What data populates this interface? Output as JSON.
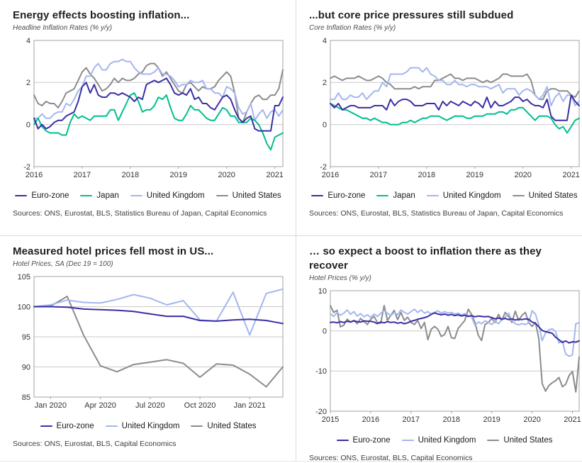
{
  "page": {
    "background": "#ffffff",
    "divider_color": "#d9d9d9"
  },
  "colors": {
    "euro_zone": "#3a2fa6",
    "japan": "#00bf8e",
    "united_kingdom": "#a4b6f0",
    "united_states": "#8c8c8c",
    "gridline": "#c9c9c9",
    "plot_border": "#a3a3a3",
    "tick_text": "#333333"
  },
  "chart_data": [
    {
      "type": "line",
      "title": "Energy effects boosting inflation...",
      "subtitle": "Headline Inflation Rates (% y/y)",
      "sources": "Sources: ONS, Eurostat, BLS, Statistics Bureau of Japan, Capital Economics",
      "ylim": [
        -2,
        4
      ],
      "yticks": [
        4,
        2,
        0,
        -2
      ],
      "ygrid": [
        2,
        0
      ],
      "xticks": [
        {
          "i": 0,
          "label": "2016"
        },
        {
          "i": 12,
          "label": "2017"
        },
        {
          "i": 24,
          "label": "2018"
        },
        {
          "i": 36,
          "label": "2019"
        },
        {
          "i": 48,
          "label": "2020"
        },
        {
          "i": 60,
          "label": "2021"
        }
      ],
      "legend_position": "bottom",
      "grid": true,
      "series": [
        {
          "name": "Euro-zone",
          "color": "#3a2fa6",
          "values": [
            0.3,
            -0.2,
            0.0,
            -0.2,
            -0.1,
            0.1,
            0.2,
            0.2,
            0.4,
            0.5,
            0.6,
            1.1,
            1.8,
            2.0,
            1.5,
            1.9,
            1.4,
            1.3,
            1.3,
            1.5,
            1.5,
            1.4,
            1.5,
            1.4,
            1.3,
            1.1,
            1.3,
            1.2,
            1.9,
            2.0,
            2.1,
            2.0,
            2.1,
            2.2,
            1.9,
            1.5,
            1.4,
            1.5,
            1.4,
            1.7,
            1.2,
            1.3,
            1.0,
            1.0,
            0.8,
            0.7,
            1.0,
            1.3,
            1.4,
            1.2,
            0.7,
            0.3,
            0.1,
            0.3,
            0.4,
            -0.2,
            -0.3,
            -0.3,
            -0.3,
            -0.3,
            0.9,
            0.9,
            1.3
          ]
        },
        {
          "name": "Japan",
          "color": "#00bf8e",
          "values": [
            0.0,
            0.3,
            -0.1,
            -0.3,
            -0.4,
            -0.4,
            -0.4,
            -0.5,
            -0.5,
            0.1,
            0.5,
            0.3,
            0.4,
            0.3,
            0.2,
            0.4,
            0.4,
            0.4,
            0.4,
            0.7,
            0.7,
            0.2,
            0.6,
            1.0,
            1.4,
            1.5,
            1.1,
            0.6,
            0.7,
            0.7,
            0.9,
            1.3,
            1.2,
            1.4,
            0.8,
            0.3,
            0.2,
            0.2,
            0.5,
            0.9,
            0.7,
            0.7,
            0.5,
            0.3,
            0.2,
            0.2,
            0.5,
            0.8,
            0.7,
            0.4,
            0.4,
            0.1,
            0.1,
            0.1,
            0.3,
            0.2,
            0.0,
            -0.4,
            -0.9,
            -1.2,
            -0.6,
            -0.5,
            -0.4
          ]
        },
        {
          "name": "United Kingdom",
          "color": "#a4b6f0",
          "values": [
            0.3,
            0.3,
            0.5,
            0.3,
            0.3,
            0.5,
            0.6,
            0.6,
            1.0,
            0.9,
            1.2,
            1.6,
            1.8,
            2.3,
            2.3,
            2.7,
            2.9,
            2.6,
            2.6,
            2.9,
            3.0,
            3.0,
            3.1,
            3.0,
            3.0,
            2.7,
            2.5,
            2.4,
            2.4,
            2.4,
            2.5,
            2.7,
            2.4,
            2.4,
            2.3,
            2.1,
            1.8,
            1.9,
            1.9,
            2.1,
            2.0,
            2.0,
            2.1,
            1.7,
            1.7,
            1.5,
            1.5,
            1.3,
            1.8,
            1.7,
            1.5,
            0.8,
            0.5,
            0.6,
            1.0,
            0.2,
            0.5,
            0.7,
            0.3,
            0.6,
            0.7,
            0.4,
            0.7
          ]
        },
        {
          "name": "United States",
          "color": "#8c8c8c",
          "values": [
            1.4,
            1.0,
            0.9,
            1.1,
            1.0,
            1.0,
            0.8,
            1.1,
            1.5,
            1.6,
            1.7,
            2.1,
            2.5,
            2.7,
            2.4,
            2.2,
            1.9,
            1.6,
            1.7,
            1.9,
            2.2,
            2.0,
            2.2,
            2.1,
            2.1,
            2.2,
            2.4,
            2.5,
            2.8,
            2.9,
            2.9,
            2.7,
            2.3,
            2.5,
            2.2,
            1.9,
            1.6,
            1.5,
            1.9,
            2.0,
            1.8,
            1.6,
            1.8,
            1.7,
            1.7,
            1.8,
            2.1,
            2.3,
            2.5,
            2.3,
            1.5,
            0.3,
            0.1,
            0.6,
            1.0,
            1.3,
            1.4,
            1.2,
            1.2,
            1.4,
            1.4,
            1.7,
            2.6
          ]
        }
      ]
    },
    {
      "type": "line",
      "title": "...but core price pressures still subdued",
      "subtitle": "Core Inflation Rates (% y/y)",
      "sources": "Sources: ONS, Eurostat, BLS, Statistics Bureau of Japan, Capital Economics",
      "ylim": [
        -2,
        4
      ],
      "yticks": [
        4,
        2,
        0,
        -2
      ],
      "ygrid": [
        2,
        0
      ],
      "xticks": [
        {
          "i": 0,
          "label": "2016"
        },
        {
          "i": 12,
          "label": "2017"
        },
        {
          "i": 24,
          "label": "2018"
        },
        {
          "i": 36,
          "label": "2019"
        },
        {
          "i": 48,
          "label": "2020"
        },
        {
          "i": 60,
          "label": "2021"
        }
      ],
      "legend_position": "bottom",
      "grid": true,
      "series": [
        {
          "name": "Euro-zone",
          "color": "#3a2fa6",
          "values": [
            1.0,
            0.8,
            1.0,
            0.7,
            0.8,
            0.9,
            0.9,
            0.8,
            0.8,
            0.8,
            0.8,
            0.9,
            0.9,
            0.9,
            0.7,
            1.2,
            0.9,
            1.1,
            1.2,
            1.2,
            1.1,
            0.9,
            0.9,
            0.9,
            1.0,
            1.0,
            1.0,
            0.7,
            1.1,
            0.9,
            1.1,
            1.0,
            0.9,
            1.1,
            1.0,
            0.9,
            1.1,
            1.0,
            0.8,
            1.3,
            0.8,
            1.1,
            0.9,
            0.9,
            1.0,
            1.1,
            1.3,
            1.3,
            1.1,
            1.2,
            1.0,
            0.9,
            0.9,
            0.8,
            1.2,
            0.4,
            0.2,
            0.2,
            0.2,
            0.2,
            1.4,
            1.1,
            0.9
          ]
        },
        {
          "name": "Japan",
          "color": "#00bf8e",
          "values": [
            1.0,
            0.9,
            0.8,
            0.7,
            0.7,
            0.6,
            0.5,
            0.4,
            0.3,
            0.3,
            0.2,
            0.3,
            0.2,
            0.1,
            0.1,
            0.0,
            0.0,
            0.0,
            0.1,
            0.1,
            0.2,
            0.1,
            0.2,
            0.3,
            0.3,
            0.4,
            0.4,
            0.4,
            0.3,
            0.2,
            0.3,
            0.4,
            0.4,
            0.4,
            0.3,
            0.3,
            0.4,
            0.4,
            0.4,
            0.5,
            0.5,
            0.5,
            0.6,
            0.6,
            0.5,
            0.7,
            0.7,
            0.8,
            0.8,
            0.6,
            0.4,
            0.2,
            0.4,
            0.4,
            0.4,
            0.3,
            0.0,
            -0.2,
            -0.1,
            -0.4,
            -0.1,
            0.2,
            0.3
          ]
        },
        {
          "name": "United Kingdom",
          "color": "#a4b6f0",
          "values": [
            1.2,
            1.2,
            1.5,
            1.2,
            1.2,
            1.4,
            1.3,
            1.3,
            1.5,
            1.2,
            1.4,
            1.6,
            1.6,
            2.0,
            1.8,
            2.4,
            2.4,
            2.4,
            2.4,
            2.5,
            2.7,
            2.7,
            2.7,
            2.5,
            2.7,
            2.4,
            2.3,
            2.1,
            2.1,
            1.9,
            1.9,
            2.1,
            1.9,
            1.9,
            1.8,
            1.9,
            1.9,
            1.8,
            1.8,
            1.8,
            1.7,
            1.8,
            1.9,
            1.5,
            1.7,
            1.7,
            1.7,
            1.4,
            1.6,
            1.7,
            1.6,
            1.4,
            1.2,
            1.4,
            1.8,
            0.9,
            1.3,
            1.5,
            1.1,
            1.4,
            1.4,
            0.9,
            1.1
          ]
        },
        {
          "name": "United States",
          "color": "#8c8c8c",
          "values": [
            2.2,
            2.3,
            2.2,
            2.1,
            2.2,
            2.2,
            2.2,
            2.3,
            2.2,
            2.1,
            2.1,
            2.2,
            2.3,
            2.2,
            2.0,
            1.9,
            1.7,
            1.7,
            1.7,
            1.7,
            1.7,
            1.8,
            1.7,
            1.8,
            1.8,
            1.8,
            2.1,
            2.1,
            2.2,
            2.3,
            2.4,
            2.2,
            2.2,
            2.1,
            2.2,
            2.2,
            2.2,
            2.1,
            2.0,
            2.1,
            2.0,
            2.1,
            2.2,
            2.4,
            2.4,
            2.3,
            2.3,
            2.3,
            2.3,
            2.4,
            2.1,
            1.4,
            1.2,
            1.2,
            1.6,
            1.7,
            1.7,
            1.6,
            1.6,
            1.6,
            1.4,
            1.3,
            1.6
          ]
        }
      ]
    },
    {
      "type": "line",
      "title": "Measured hotel prices fell most in US...",
      "subtitle": "Hotel Prices, SA (Dec 19 = 100)",
      "sources": "Sources: ONS, Eurostat, BLS, Capital Economics",
      "ylim": [
        85,
        105
      ],
      "yticks": [
        105,
        100,
        95,
        90,
        85
      ],
      "ygrid": [
        100,
        95,
        90
      ],
      "xticks": [
        {
          "i": 1,
          "label": "Jan 2020"
        },
        {
          "i": 4,
          "label": "Apr 2020"
        },
        {
          "i": 7,
          "label": "Jul 2020"
        },
        {
          "i": 10,
          "label": "Oct 2020"
        },
        {
          "i": 13,
          "label": "Jan 2021"
        }
      ],
      "legend_position": "bottom",
      "grid": true,
      "series": [
        {
          "name": "Euro-zone",
          "color": "#3a2fa6",
          "values": [
            100.0,
            100.0,
            99.9,
            99.6,
            99.5,
            99.4,
            99.2,
            98.8,
            98.4,
            98.4,
            97.7,
            97.6,
            97.8,
            97.9,
            97.7,
            97.2
          ]
        },
        {
          "name": "United Kingdom",
          "color": "#a4b6f0",
          "values": [
            100.0,
            100.3,
            101.1,
            100.7,
            100.6,
            101.2,
            102.0,
            101.4,
            100.3,
            101.0,
            97.8,
            97.6,
            102.4,
            95.3,
            102.2,
            102.9
          ]
        },
        {
          "name": "United States",
          "color": "#8c8c8c",
          "values": [
            100.0,
            100.1,
            101.7,
            95.2,
            90.2,
            89.2,
            90.4,
            90.8,
            91.2,
            90.6,
            88.3,
            90.5,
            90.3,
            88.8,
            86.7,
            90.0
          ]
        }
      ]
    },
    {
      "type": "line",
      "title": "… so expect a boost to inflation there as they recover",
      "subtitle": "Hotel Prices (% y/y)",
      "sources": "Sources: ONS, Eurostat, BLS, Capital Economics",
      "ylim": [
        -20,
        10
      ],
      "yticks": [
        10,
        0,
        -10,
        -20
      ],
      "ygrid": [
        0,
        -10
      ],
      "xticks": [
        {
          "i": 0,
          "label": "2015"
        },
        {
          "i": 12,
          "label": "2016"
        },
        {
          "i": 24,
          "label": "2017"
        },
        {
          "i": 36,
          "label": "2018"
        },
        {
          "i": 48,
          "label": "2019"
        },
        {
          "i": 60,
          "label": "2020"
        },
        {
          "i": 72,
          "label": "2021"
        }
      ],
      "legend_position": "bottom",
      "grid": true,
      "series": [
        {
          "name": "Euro-zone",
          "color": "#3a2fa6",
          "values": [
            2.1,
            2.2,
            2.0,
            2.3,
            2.1,
            2.4,
            2.2,
            2.5,
            2.3,
            2.2,
            2.5,
            2.4,
            2.4,
            2.2,
            1.8,
            2.2,
            2.0,
            2.3,
            2.1,
            2.2,
            1.9,
            2.1,
            1.8,
            2.0,
            2.4,
            2.6,
            2.9,
            3.1,
            3.3,
            3.6,
            4.1,
            4.5,
            4.2,
            4.0,
            4.2,
            3.9,
            4.1,
            3.8,
            4.0,
            3.7,
            3.9,
            3.6,
            3.8,
            3.5,
            3.7,
            3.6,
            3.5,
            3.6,
            3.3,
            3.0,
            3.2,
            2.9,
            3.1,
            2.8,
            3.0,
            2.7,
            2.9,
            2.8,
            3.0,
            2.9,
            2.2,
            1.9,
            1.0,
            0.1,
            -0.2,
            -0.4,
            -0.6,
            -1.6,
            -2.2,
            -2.9,
            -2.5,
            -3.0,
            -2.7,
            -2.8,
            -2.5
          ]
        },
        {
          "name": "United Kingdom",
          "color": "#a4b6f0",
          "values": [
            4.3,
            3.6,
            4.6,
            3.9,
            4.4,
            5.2,
            4.1,
            4.8,
            3.7,
            4.3,
            3.5,
            4.0,
            3.4,
            4.2,
            3.6,
            4.4,
            5.0,
            4.4,
            3.8,
            4.6,
            4.0,
            5.2,
            4.6,
            4.2,
            4.8,
            5.4,
            4.6,
            5.2,
            4.4,
            4.8,
            4.2,
            4.6,
            5.0,
            4.4,
            4.8,
            4.4,
            4.6,
            4.2,
            4.4,
            4.0,
            4.3,
            3.9,
            3.5,
            1.4,
            2.2,
            1.8,
            2.5,
            2.1,
            1.6,
            2.4,
            1.8,
            2.8,
            3.4,
            4.4,
            2.6,
            1.8,
            1.5,
            1.8,
            1.6,
            2.0,
            5.0,
            4.2,
            1.5,
            -2.4,
            -0.5,
            0.3,
            0.5,
            -0.2,
            -3.0,
            -2.5,
            -5.8,
            -6.3,
            -6.0,
            1.8,
            2.0
          ]
        },
        {
          "name": "United States",
          "color": "#8c8c8c",
          "values": [
            6.3,
            4.6,
            5.1,
            1.0,
            1.4,
            2.9,
            2.2,
            2.6,
            1.8,
            3.1,
            2.3,
            1.6,
            2.9,
            3.6,
            2.1,
            1.9,
            6.3,
            2.6,
            3.9,
            5.1,
            2.8,
            4.6,
            2.6,
            3.4,
            2.1,
            1.6,
            2.6,
            0.6,
            2.1,
            -2.2,
            0.4,
            1.1,
            0.4,
            -1.4,
            -0.9,
            1.1,
            -1.7,
            -1.9,
            0.6,
            1.6,
            2.6,
            5.4,
            4.1,
            2.1,
            -1.1,
            -2.4,
            1.6,
            2.1,
            3.1,
            2.1,
            4.1,
            2.6,
            4.6,
            3.6,
            2.1,
            4.9,
            2.6,
            3.9,
            4.6,
            2.1,
            1.1,
            2.1,
            -1.9,
            -13.1,
            -15.0,
            -13.6,
            -12.9,
            -12.4,
            -11.6,
            -13.9,
            -13.3,
            -11.1,
            -10.1,
            -15.2,
            -6.5
          ]
        }
      ]
    }
  ]
}
